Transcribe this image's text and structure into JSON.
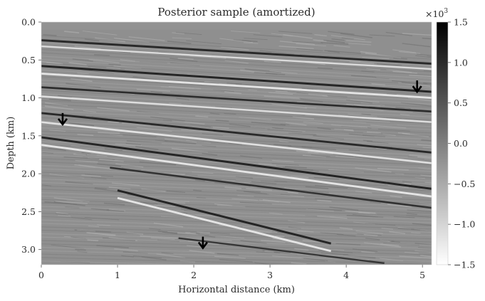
{
  "chart_data": {
    "type": "heatmap",
    "title": "Posterior sample (amortized)",
    "xlabel": "Horizontal distance (km)",
    "ylabel": "Depth (km)",
    "xlim": [
      0,
      5.12
    ],
    "ylim": [
      3.2,
      0.0
    ],
    "xticks": [
      "0",
      "1",
      "2",
      "3",
      "4",
      "5"
    ],
    "xtick_values": [
      0,
      1,
      2,
      3,
      4,
      5
    ],
    "yticks": [
      "0.0",
      "0.5",
      "1.0",
      "1.5",
      "2.0",
      "2.5",
      "3.0"
    ],
    "ytick_values": [
      0.0,
      0.5,
      1.0,
      1.5,
      2.0,
      2.5,
      3.0
    ],
    "colormap": "greys",
    "colorbar": {
      "range": [
        -1.5,
        1.5
      ],
      "ticks": [
        "1.5",
        "1.0",
        "0.5",
        "0.0",
        "−0.5",
        "−1.0",
        "−1.5"
      ],
      "tick_values": [
        1.5,
        1.0,
        0.5,
        0.0,
        -0.5,
        -1.0,
        -1.5
      ],
      "scale_label": "×10",
      "scale_exponent": "3"
    },
    "water_layer_depth": 0.1,
    "reflectors": [
      {
        "x": [
          0,
          5.12
        ],
        "depth": [
          0.24,
          0.55
        ],
        "amp": 0.9
      },
      {
        "x": [
          0,
          5.12
        ],
        "depth": [
          0.32,
          0.62
        ],
        "amp": -0.6
      },
      {
        "x": [
          0,
          5.12
        ],
        "depth": [
          0.58,
          0.92
        ],
        "amp": 1.0
      },
      {
        "x": [
          0,
          5.12
        ],
        "depth": [
          0.68,
          1.0
        ],
        "amp": -0.9
      },
      {
        "x": [
          0,
          5.12
        ],
        "depth": [
          0.86,
          1.18
        ],
        "amp": 0.8
      },
      {
        "x": [
          0,
          5.12
        ],
        "depth": [
          0.98,
          1.32
        ],
        "amp": -0.7
      },
      {
        "x": [
          0,
          5.12
        ],
        "depth": [
          1.2,
          1.72
        ],
        "amp": 0.9
      },
      {
        "x": [
          0,
          5.12
        ],
        "depth": [
          1.32,
          1.86
        ],
        "amp": -0.8
      },
      {
        "x": [
          0,
          5.12
        ],
        "depth": [
          1.52,
          2.2
        ],
        "amp": 1.0
      },
      {
        "x": [
          0,
          5.12
        ],
        "depth": [
          1.62,
          2.3
        ],
        "amp": -0.9
      },
      {
        "x": [
          0.9,
          5.12
        ],
        "depth": [
          1.92,
          2.45
        ],
        "amp": 0.7
      },
      {
        "x": [
          1.0,
          3.8
        ],
        "depth": [
          2.22,
          2.92
        ],
        "amp": 1.0
      },
      {
        "x": [
          1.0,
          3.8
        ],
        "depth": [
          2.32,
          3.02
        ],
        "amp": -0.9
      },
      {
        "x": [
          1.8,
          4.5
        ],
        "depth": [
          2.85,
          3.18
        ],
        "amp": 0.6
      }
    ],
    "arrows": [
      {
        "x": 0.28,
        "depth": 1.35
      },
      {
        "x": 4.93,
        "depth": 0.92
      },
      {
        "x": 2.12,
        "depth": 2.98
      }
    ]
  }
}
